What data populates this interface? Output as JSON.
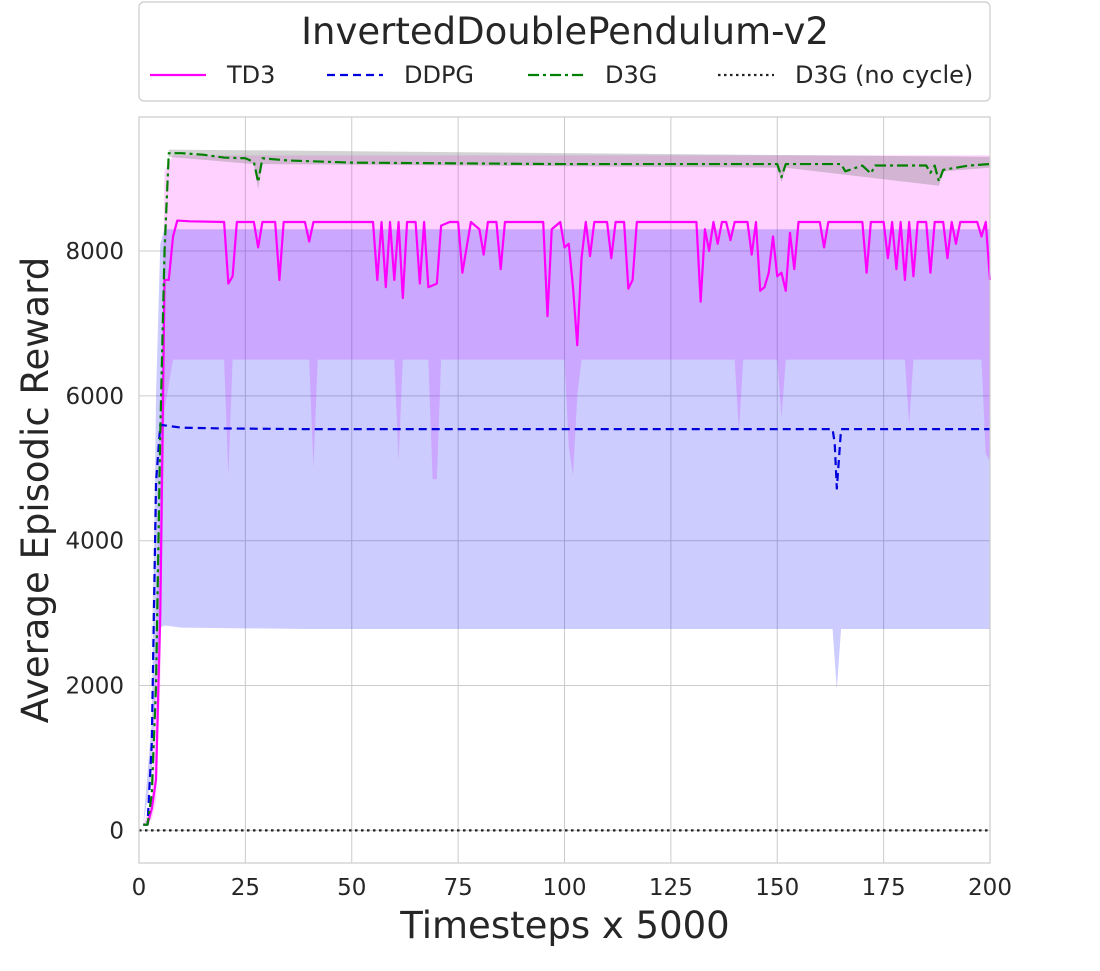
{
  "chart_data": {
    "type": "line",
    "title": "InvertedDoublePendulum-v2",
    "xlabel": "Timesteps x 5000",
    "ylabel": "Average Episodic Reward",
    "xlim": [
      0,
      200
    ],
    "ylim": [
      -450,
      9850
    ],
    "xticks": [
      0,
      25,
      50,
      75,
      100,
      125,
      150,
      175,
      200
    ],
    "yticks": [
      0,
      2000,
      4000,
      6000,
      8000
    ],
    "grid": true,
    "legend_placement": "top, above plot",
    "series": [
      {
        "name": "TD3",
        "color": "#ff00ff",
        "dash": "solid",
        "band": {
          "color": "#ff00ff",
          "opacity": 0.18
        },
        "points": [
          [
            1,
            80
          ],
          [
            2,
            80
          ],
          [
            3,
            300
          ],
          [
            4,
            700
          ],
          [
            5,
            3000
          ],
          [
            6,
            7600
          ],
          [
            7,
            7600
          ],
          [
            8,
            8200
          ],
          [
            9,
            8420
          ],
          [
            12,
            8410
          ],
          [
            20,
            8400
          ],
          [
            21,
            7550
          ],
          [
            22,
            7650
          ],
          [
            23,
            8400
          ],
          [
            27,
            8400
          ],
          [
            28,
            8050
          ],
          [
            29,
            8400
          ],
          [
            32,
            8400
          ],
          [
            33,
            7600
          ],
          [
            34,
            8400
          ],
          [
            39,
            8400
          ],
          [
            40,
            8130
          ],
          [
            41,
            8400
          ],
          [
            55,
            8400
          ],
          [
            56,
            7600
          ],
          [
            57,
            8400
          ],
          [
            58,
            7500
          ],
          [
            59,
            8400
          ],
          [
            60,
            7600
          ],
          [
            61,
            8400
          ],
          [
            62,
            7350
          ],
          [
            63,
            8400
          ],
          [
            65,
            8400
          ],
          [
            66,
            7550
          ],
          [
            67,
            8400
          ],
          [
            68,
            7500
          ],
          [
            70,
            7550
          ],
          [
            71,
            8350
          ],
          [
            73,
            8400
          ],
          [
            75,
            8400
          ],
          [
            76,
            7700
          ],
          [
            78,
            8400
          ],
          [
            80,
            8300
          ],
          [
            81,
            7950
          ],
          [
            82,
            8400
          ],
          [
            84,
            8400
          ],
          [
            85,
            7750
          ],
          [
            86,
            8400
          ],
          [
            95,
            8400
          ],
          [
            96,
            7100
          ],
          [
            97,
            8300
          ],
          [
            99,
            8400
          ],
          [
            100,
            8050
          ],
          [
            101,
            8100
          ],
          [
            102,
            7500
          ],
          [
            103,
            6700
          ],
          [
            104,
            7900
          ],
          [
            105,
            8400
          ],
          [
            106,
            7930
          ],
          [
            107,
            8400
          ],
          [
            110,
            8400
          ],
          [
            111,
            7900
          ],
          [
            112,
            8400
          ],
          [
            114,
            8400
          ],
          [
            115,
            7480
          ],
          [
            116,
            7600
          ],
          [
            117,
            8400
          ],
          [
            125,
            8400
          ],
          [
            131,
            8400
          ],
          [
            132,
            7300
          ],
          [
            133,
            8300
          ],
          [
            134,
            8000
          ],
          [
            135,
            8400
          ],
          [
            136,
            8100
          ],
          [
            137,
            8400
          ],
          [
            138,
            8400
          ],
          [
            139,
            8150
          ],
          [
            140,
            8400
          ],
          [
            143,
            8400
          ],
          [
            144,
            7950
          ],
          [
            145,
            8400
          ],
          [
            146,
            7450
          ],
          [
            147,
            7500
          ],
          [
            148,
            7700
          ],
          [
            149,
            8200
          ],
          [
            150,
            7650
          ],
          [
            151,
            7700
          ],
          [
            152,
            7450
          ],
          [
            153,
            8250
          ],
          [
            154,
            7750
          ],
          [
            155,
            8400
          ],
          [
            160,
            8400
          ],
          [
            161,
            8050
          ],
          [
            162,
            8400
          ],
          [
            170,
            8400
          ],
          [
            171,
            7700
          ],
          [
            172,
            8400
          ],
          [
            175,
            8400
          ],
          [
            176,
            7900
          ],
          [
            177,
            8400
          ],
          [
            178,
            7750
          ],
          [
            179,
            8400
          ],
          [
            180,
            7600
          ],
          [
            181,
            8400
          ],
          [
            182,
            7650
          ],
          [
            183,
            8400
          ],
          [
            185,
            8400
          ],
          [
            186,
            7700
          ],
          [
            187,
            8400
          ],
          [
            189,
            8400
          ],
          [
            190,
            7900
          ],
          [
            191,
            8400
          ],
          [
            192,
            8100
          ],
          [
            193,
            8400
          ],
          [
            197,
            8400
          ],
          [
            198,
            8200
          ],
          [
            199,
            8400
          ],
          [
            200,
            7600
          ]
        ],
        "band_upper": [
          [
            1,
            80
          ],
          [
            3,
            400
          ],
          [
            5,
            5000
          ],
          [
            6,
            9100
          ],
          [
            8,
            9320
          ],
          [
            60,
            9320
          ],
          [
            100,
            9320
          ],
          [
            150,
            9320
          ],
          [
            200,
            9320
          ]
        ],
        "band_lower": [
          [
            1,
            80
          ],
          [
            3,
            150
          ],
          [
            4,
            400
          ],
          [
            5,
            2000
          ],
          [
            6,
            5800
          ],
          [
            8,
            6500
          ],
          [
            20,
            6500
          ],
          [
            21,
            4900
          ],
          [
            22,
            6500
          ],
          [
            40,
            6500
          ],
          [
            41,
            5000
          ],
          [
            42,
            6500
          ],
          [
            60,
            6500
          ],
          [
            61,
            5100
          ],
          [
            62,
            6500
          ],
          [
            68,
            6500
          ],
          [
            69,
            4850
          ],
          [
            70,
            4850
          ],
          [
            71,
            6500
          ],
          [
            100,
            6500
          ],
          [
            101,
            5300
          ],
          [
            102,
            4900
          ],
          [
            103,
            6000
          ],
          [
            104,
            6500
          ],
          [
            140,
            6500
          ],
          [
            141,
            5500
          ],
          [
            142,
            6500
          ],
          [
            150,
            6500
          ],
          [
            151,
            5700
          ],
          [
            152,
            6500
          ],
          [
            180,
            6500
          ],
          [
            181,
            5600
          ],
          [
            182,
            6500
          ],
          [
            198,
            6500
          ],
          [
            199,
            5200
          ],
          [
            200,
            5100
          ]
        ]
      },
      {
        "name": "DDPG",
        "color": "#0000dd",
        "dash": "dashed",
        "band": {
          "color": "#0000ff",
          "opacity": 0.2
        },
        "points": [
          [
            1,
            80
          ],
          [
            2,
            80
          ],
          [
            3,
            1200
          ],
          [
            4,
            4800
          ],
          [
            5,
            5600
          ],
          [
            10,
            5560
          ],
          [
            20,
            5550
          ],
          [
            40,
            5540
          ],
          [
            80,
            5540
          ],
          [
            120,
            5540
          ],
          [
            160,
            5540
          ],
          [
            163,
            5540
          ],
          [
            163.5,
            5350
          ],
          [
            164,
            4720
          ],
          [
            165,
            5540
          ],
          [
            200,
            5540
          ]
        ],
        "band_upper": [
          [
            1,
            80
          ],
          [
            3,
            1500
          ],
          [
            4,
            6000
          ],
          [
            5,
            8100
          ],
          [
            6,
            8300
          ],
          [
            200,
            8300
          ]
        ],
        "band_lower": [
          [
            1,
            80
          ],
          [
            3,
            800
          ],
          [
            4,
            2000
          ],
          [
            5,
            2800
          ],
          [
            6,
            2830
          ],
          [
            10,
            2800
          ],
          [
            40,
            2780
          ],
          [
            100,
            2780
          ],
          [
            160,
            2780
          ],
          [
            163,
            2780
          ],
          [
            164,
            1950
          ],
          [
            165,
            2780
          ],
          [
            200,
            2780
          ]
        ]
      },
      {
        "name": "D3G",
        "color": "#008000",
        "dash": "dashdot",
        "band": {
          "color": "#808080",
          "opacity": 0.35
        },
        "points": [
          [
            1,
            80
          ],
          [
            2,
            80
          ],
          [
            3,
            500
          ],
          [
            4,
            2000
          ],
          [
            5,
            5500
          ],
          [
            6,
            8000
          ],
          [
            7,
            9350
          ],
          [
            10,
            9350
          ],
          [
            15,
            9330
          ],
          [
            20,
            9290
          ],
          [
            25,
            9280
          ],
          [
            27,
            9230
          ],
          [
            28,
            8950
          ],
          [
            29,
            9280
          ],
          [
            35,
            9250
          ],
          [
            50,
            9220
          ],
          [
            100,
            9200
          ],
          [
            150,
            9200
          ],
          [
            151,
            9020
          ],
          [
            152,
            9200
          ],
          [
            165,
            9200
          ],
          [
            166,
            9100
          ],
          [
            170,
            9180
          ],
          [
            172,
            9070
          ],
          [
            173,
            9180
          ],
          [
            185,
            9180
          ],
          [
            186,
            9080
          ],
          [
            187,
            9180
          ],
          [
            188,
            8960
          ],
          [
            189,
            9120
          ],
          [
            192,
            9150
          ],
          [
            195,
            9180
          ],
          [
            200,
            9200
          ]
        ],
        "band_upper": [
          [
            1,
            80
          ],
          [
            5,
            5600
          ],
          [
            7,
            9400
          ],
          [
            200,
            9300
          ]
        ],
        "band_lower": [
          [
            1,
            80
          ],
          [
            5,
            5400
          ],
          [
            7,
            9300
          ],
          [
            27,
            9200
          ],
          [
            28,
            8850
          ],
          [
            29,
            9200
          ],
          [
            150,
            9150
          ],
          [
            151,
            8950
          ],
          [
            152,
            9150
          ],
          [
            188,
            8900
          ],
          [
            189,
            9100
          ],
          [
            200,
            9150
          ]
        ]
      },
      {
        "name": "D3G (no cycle)",
        "color": "#222222",
        "dash": "dotted",
        "points": [
          [
            0,
            0
          ],
          [
            200,
            0
          ]
        ]
      }
    ]
  }
}
